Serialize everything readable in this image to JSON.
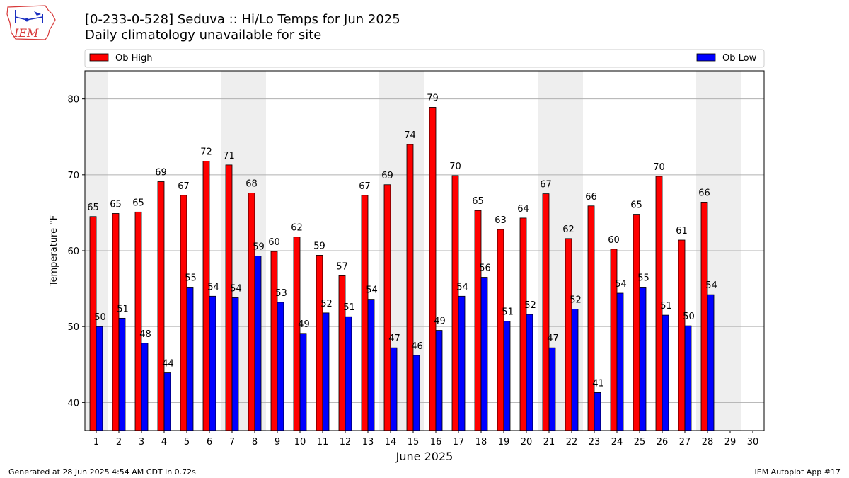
{
  "header": {
    "title_line1": "[0-233-0-528] Seduva :: Hi/Lo Temps for Jun 2025",
    "title_line2": "Daily climatology unavailable for site",
    "logo_text": "IEM"
  },
  "footer": {
    "generated": "Generated at 28 Jun 2025 4:54 AM CDT in 0.72s",
    "app": "IEM Autoplot App #17"
  },
  "colors": {
    "high": "#ff0000",
    "low": "#0000ff",
    "weekend_band": "#eeeeee",
    "grid": "#b0b0b0"
  },
  "chart_data": {
    "type": "bar",
    "xlabel": "June 2025",
    "ylabel": "Temperature °F",
    "ylim": [
      36.3,
      83.7
    ],
    "yticks": [
      40,
      50,
      60,
      70,
      80
    ],
    "grid": "horizontal",
    "legend_entries": [
      "Ob High",
      "Ob Low"
    ],
    "legend_placement": "top, spanning",
    "categories": [
      "1",
      "2",
      "3",
      "4",
      "5",
      "6",
      "7",
      "8",
      "9",
      "10",
      "11",
      "12",
      "13",
      "14",
      "15",
      "16",
      "17",
      "18",
      "19",
      "20",
      "21",
      "22",
      "23",
      "24",
      "25",
      "26",
      "27",
      "28",
      "29",
      "30"
    ],
    "weekend_bands": [
      [
        1,
        1
      ],
      [
        7,
        8
      ],
      [
        14,
        15
      ],
      [
        21,
        22
      ],
      [
        28,
        29
      ]
    ],
    "series": [
      {
        "name": "Ob High",
        "values": [
          64.5,
          64.9,
          65.1,
          69.1,
          67.3,
          71.8,
          71.3,
          67.6,
          59.9,
          61.8,
          59.4,
          56.7,
          67.3,
          68.7,
          74.0,
          78.9,
          69.9,
          65.3,
          62.8,
          64.3,
          67.5,
          61.6,
          65.9,
          60.2,
          64.8,
          69.8,
          61.4,
          66.4,
          null,
          null
        ],
        "labels": [
          "65",
          "65",
          "65",
          "69",
          "67",
          "72",
          "71",
          "68",
          "60",
          "62",
          "59",
          "57",
          "67",
          "69",
          "74",
          "79",
          "70",
          "65",
          "63",
          "64",
          "67",
          "62",
          "66",
          "60",
          "65",
          "70",
          "61",
          "66",
          "",
          ""
        ]
      },
      {
        "name": "Ob Low",
        "values": [
          50.0,
          51.1,
          47.8,
          43.9,
          55.2,
          54.0,
          53.8,
          59.3,
          53.2,
          49.1,
          51.8,
          51.3,
          53.6,
          47.2,
          46.2,
          49.5,
          54.0,
          56.5,
          50.7,
          51.6,
          47.2,
          52.3,
          41.3,
          54.4,
          55.2,
          51.5,
          50.1,
          54.2,
          null,
          null
        ],
        "labels": [
          "50",
          "51",
          "48",
          "44",
          "55",
          "54",
          "54",
          "59",
          "53",
          "49",
          "52",
          "51",
          "54",
          "47",
          "46",
          "49",
          "54",
          "56",
          "51",
          "52",
          "47",
          "52",
          "41",
          "54",
          "55",
          "51",
          "50",
          "54",
          "",
          ""
        ]
      }
    ]
  }
}
